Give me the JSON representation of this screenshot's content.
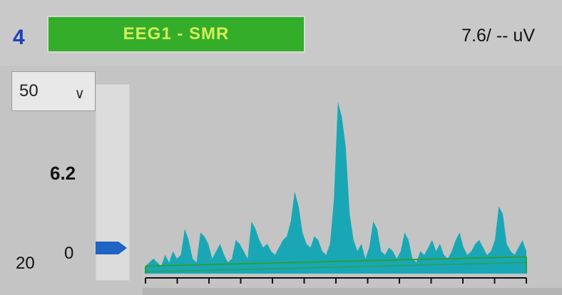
{
  "channel": {
    "number": "4",
    "label": "EEG1 - SMR",
    "readout": "7.6/ -- uV",
    "label_color": "#34ad2b",
    "label_text_color": "#d4ee5a",
    "number_color": "#1e3fb8"
  },
  "scale": {
    "selected": "50",
    "icon": "chevron-down-icon"
  },
  "threshold": {
    "value": "6.2",
    "level_fraction": 0.124,
    "marker_color": "#1f63c4"
  },
  "axis": {
    "zero": "0",
    "min": "20"
  },
  "chart_data": {
    "type": "area",
    "series": [
      {
        "values": [
          2,
          3,
          4,
          3,
          2,
          5,
          3,
          6,
          4,
          5,
          12,
          9,
          4,
          3,
          11,
          10,
          8,
          4,
          6,
          8,
          5,
          3,
          4,
          9,
          8,
          6,
          4,
          14,
          12,
          9,
          7,
          8,
          6,
          5,
          7,
          9,
          10,
          14,
          22,
          18,
          11,
          8,
          7,
          10,
          9,
          6,
          5,
          8,
          20,
          46,
          42,
          34,
          16,
          9,
          6,
          8,
          4,
          7,
          14,
          12,
          6,
          5,
          7,
          6,
          4,
          6,
          11,
          9,
          4,
          3,
          6,
          5,
          7,
          9,
          6,
          8,
          5,
          4,
          6,
          9,
          11,
          7,
          5,
          6,
          8,
          9,
          7,
          5,
          6,
          9,
          18,
          16,
          8,
          6,
          5,
          7,
          9,
          6
        ]
      }
    ],
    "fill_color": "#1aa7b5",
    "background_bar_color": "#888888",
    "threshold_line_color": "#2a9f35",
    "threshold_line": [
      2.0,
      4.5
    ],
    "ylim": [
      0,
      50
    ],
    "grid": false
  }
}
